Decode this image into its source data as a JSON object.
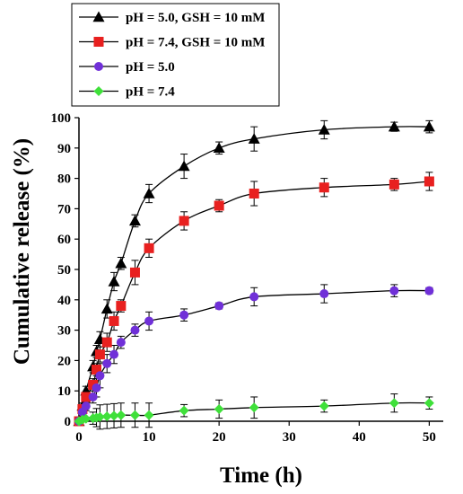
{
  "chart_data": {
    "type": "line",
    "xlabel": "Time (h)",
    "ylabel": "Cumulative release (%)",
    "xlim": [
      0,
      52
    ],
    "ylim": [
      0,
      100
    ],
    "xticks": [
      0,
      10,
      20,
      30,
      40,
      50
    ],
    "yticks": [
      0,
      10,
      20,
      30,
      40,
      50,
      60,
      70,
      80,
      90,
      100
    ],
    "grid": false,
    "legend_position": "top-left",
    "series": [
      {
        "name": "pH = 5.0, GSH = 10 mM",
        "marker": "triangle",
        "color": "#000000",
        "x": [
          0,
          0.5,
          1,
          2,
          2.5,
          3,
          4,
          5,
          6,
          8,
          10,
          15,
          20,
          25,
          35,
          45,
          50
        ],
        "y": [
          0,
          5,
          10,
          18,
          23,
          27,
          37,
          46,
          52,
          66,
          75,
          84,
          90,
          93,
          96,
          97,
          97
        ],
        "err": [
          0,
          1,
          1.5,
          2,
          2,
          2.5,
          3,
          3,
          2,
          2,
          3,
          4,
          2,
          4,
          3,
          1.5,
          2
        ]
      },
      {
        "name": "pH = 7.4, GSH = 10 mM",
        "marker": "square",
        "color": "#e8201f",
        "x": [
          0,
          0.5,
          1,
          2,
          2.5,
          3,
          4,
          5,
          6,
          8,
          10,
          15,
          20,
          25,
          35,
          45,
          50
        ],
        "y": [
          0,
          4,
          8,
          12,
          17,
          22,
          26,
          33,
          38,
          49,
          57,
          66,
          71,
          75,
          77,
          78,
          79
        ],
        "err": [
          0,
          1,
          1.5,
          2,
          2,
          2.5,
          3,
          3,
          2,
          4,
          3,
          3,
          2,
          4,
          3,
          2,
          3
        ]
      },
      {
        "name": "pH = 5.0",
        "marker": "circle",
        "color": "#7030d8",
        "x": [
          0,
          0.5,
          1,
          2,
          2.5,
          3,
          4,
          5,
          6,
          8,
          10,
          15,
          20,
          25,
          35,
          45,
          50
        ],
        "y": [
          0,
          3,
          5,
          8,
          11,
          15,
          19,
          22,
          26,
          30,
          33,
          35,
          38,
          41,
          42,
          43,
          43
        ],
        "err": [
          0,
          1,
          1.5,
          2,
          3,
          4,
          3,
          3,
          2,
          2,
          3,
          2,
          1,
          3,
          3,
          2,
          1
        ]
      },
      {
        "name": "pH = 7.4",
        "marker": "diamond",
        "color": "#3fe03a",
        "x": [
          0,
          0.5,
          1,
          2,
          2.5,
          3,
          4,
          5,
          6,
          8,
          10,
          15,
          20,
          25,
          35,
          45,
          50
        ],
        "y": [
          0,
          0.5,
          0.8,
          1,
          1.2,
          1.4,
          1.6,
          1.8,
          2,
          2,
          2,
          3.5,
          4,
          4.5,
          5,
          6,
          6
        ],
        "err": [
          0,
          0.5,
          0.5,
          2,
          3,
          4,
          4,
          4,
          4,
          4,
          4,
          2,
          3,
          3.5,
          2,
          3,
          2
        ]
      }
    ]
  }
}
